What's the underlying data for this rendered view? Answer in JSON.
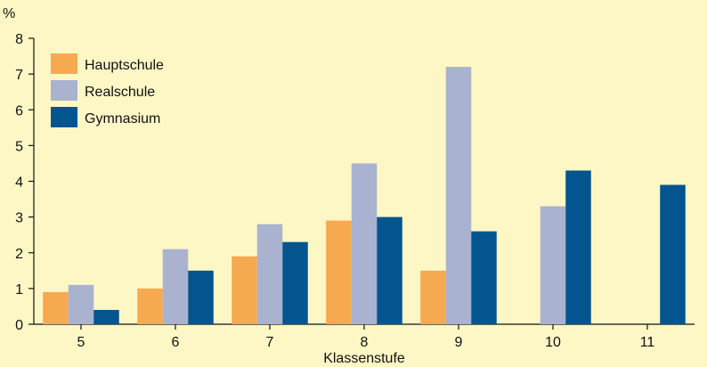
{
  "chart_data": {
    "type": "bar",
    "title": "",
    "xlabel": "Klassenstufe",
    "ylabel": "%",
    "ylim": [
      0,
      8
    ],
    "yticks": [
      0,
      1,
      2,
      3,
      4,
      5,
      6,
      7,
      8
    ],
    "categories": [
      "5",
      "6",
      "7",
      "8",
      "9",
      "10",
      "11"
    ],
    "legend_position": "top-left",
    "grid": false,
    "series": [
      {
        "name": "Hauptschule",
        "color": "#f7a94f",
        "values": [
          0.9,
          1.0,
          1.9,
          2.9,
          1.5,
          null,
          null
        ]
      },
      {
        "name": "Realschule",
        "color": "#a9b2cf",
        "values": [
          1.1,
          2.1,
          2.8,
          4.5,
          7.2,
          3.3,
          null
        ]
      },
      {
        "name": "Gymnasium",
        "color": "#03558f",
        "values": [
          0.4,
          1.5,
          2.3,
          3.0,
          2.6,
          4.3,
          3.9
        ]
      }
    ]
  }
}
